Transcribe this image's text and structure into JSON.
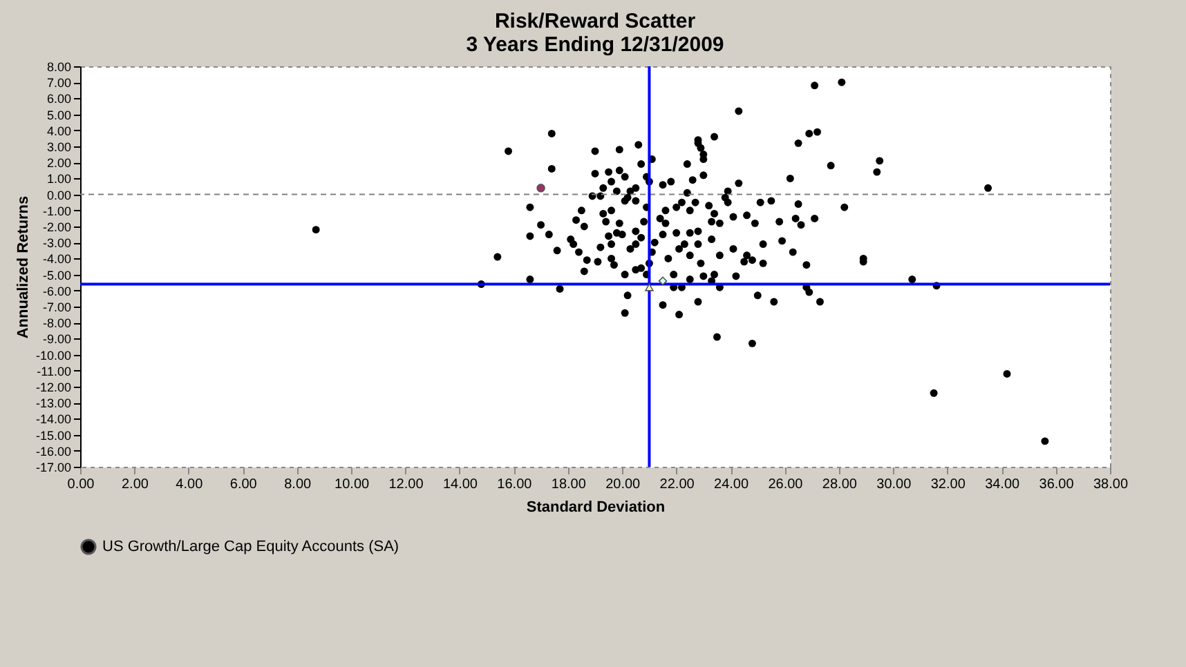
{
  "chart_data": {
    "type": "scatter",
    "title": "Risk/Reward Scatter",
    "subtitle": "3 Years Ending 12/31/2009",
    "xlabel": "Standard Deviation",
    "ylabel": "Annualized Returns",
    "xlim": [
      0,
      38
    ],
    "ylim": [
      -17,
      8
    ],
    "xticks": [
      {
        "value": 0,
        "label": "0.00"
      },
      {
        "value": 2,
        "label": "2.00"
      },
      {
        "value": 4,
        "label": "4.00"
      },
      {
        "value": 6,
        "label": "6.00"
      },
      {
        "value": 8,
        "label": "8.00"
      },
      {
        "value": 10,
        "label": "10.00"
      },
      {
        "value": 12,
        "label": "12.00"
      },
      {
        "value": 14,
        "label": "14.00"
      },
      {
        "value": 16,
        "label": "16.00"
      },
      {
        "value": 18,
        "label": "18.00"
      },
      {
        "value": 20,
        "label": "20.00"
      },
      {
        "value": 22,
        "label": "22.00"
      },
      {
        "value": 24,
        "label": "24.00"
      },
      {
        "value": 26,
        "label": "26.00"
      },
      {
        "value": 28,
        "label": "28.00"
      },
      {
        "value": 30,
        "label": "30.00"
      },
      {
        "value": 32,
        "label": "32.00"
      },
      {
        "value": 34,
        "label": "34.00"
      },
      {
        "value": 36,
        "label": "36.00"
      },
      {
        "value": 38,
        "label": "38.00"
      }
    ],
    "yticks": [
      {
        "value": 8,
        "label": "8.00"
      },
      {
        "value": 7,
        "label": "7.00"
      },
      {
        "value": 6,
        "label": "6.00"
      },
      {
        "value": 5,
        "label": "5.00"
      },
      {
        "value": 4,
        "label": "4.00"
      },
      {
        "value": 3,
        "label": "3.00"
      },
      {
        "value": 2,
        "label": "2.00"
      },
      {
        "value": 1,
        "label": "1.00"
      },
      {
        "value": 0,
        "label": "0.00"
      },
      {
        "value": -1,
        "label": "-1.00"
      },
      {
        "value": -2,
        "label": "-2.00"
      },
      {
        "value": -3,
        "label": "-3.00"
      },
      {
        "value": -4,
        "label": "-4.00"
      },
      {
        "value": -5,
        "label": "-5.00"
      },
      {
        "value": -6,
        "label": "-6.00"
      },
      {
        "value": -7,
        "label": "-7.00"
      },
      {
        "value": -8,
        "label": "-8.00"
      },
      {
        "value": -9,
        "label": "-9.00"
      },
      {
        "value": -10,
        "label": "-10.00"
      },
      {
        "value": -11,
        "label": "-11.00"
      },
      {
        "value": -12,
        "label": "-12.00"
      },
      {
        "value": -13,
        "label": "-13.00"
      },
      {
        "value": -14,
        "label": "-14.00"
      },
      {
        "value": -15,
        "label": "-15.00"
      },
      {
        "value": -16,
        "label": "-16.00"
      },
      {
        "value": -17,
        "label": "-17.00"
      }
    ],
    "legend": "bottom",
    "grid": false,
    "ref_lines": [
      {
        "axis": "y",
        "value": 0,
        "color": "#808080",
        "line_style": "dashed"
      },
      {
        "axis": "x",
        "value": 21.0,
        "color": "#0000ff",
        "line_style": "solid"
      },
      {
        "axis": "y",
        "value": -5.6,
        "color": "#0000ff",
        "line_style": "solid"
      }
    ],
    "series": [
      {
        "name": "US Growth/Large Cap Equity Accounts (SA)",
        "color": "#000000",
        "marker": "circle",
        "x": [
          8.7,
          14.8,
          27.1,
          28.1,
          24.3,
          17.4,
          15.8,
          19.0,
          19.9,
          20.6,
          22.8,
          22.8,
          22.9,
          23.0,
          23.0,
          23.4,
          26.9,
          27.2,
          26.5,
          17.4,
          21.1,
          22.4,
          23.0,
          22.6,
          21.8,
          21.5,
          21.0,
          27.7,
          29.5,
          29.4,
          26.2,
          33.5,
          28.2,
          16.6,
          17.0,
          16.6,
          17.3,
          17.6,
          15.4,
          16.6,
          17.7,
          18.3,
          18.5,
          18.6,
          18.1,
          18.2,
          18.4,
          18.7,
          19.1,
          18.6,
          19.2,
          19.6,
          19.5,
          19.8,
          20.0,
          19.4,
          19.3,
          19.6,
          19.9,
          20.2,
          18.9,
          19.2,
          19.3,
          19.0,
          19.5,
          19.6,
          19.9,
          20.1,
          19.8,
          20.3,
          20.5,
          20.7,
          20.9,
          20.1,
          20.5,
          20.9,
          20.8,
          20.5,
          20.7,
          20.5,
          20.3,
          19.6,
          19.7,
          20.1,
          20.5,
          20.7,
          21.0,
          20.9,
          21.1,
          21.2,
          21.5,
          21.6,
          21.4,
          21.6,
          22.0,
          22.2,
          22.4,
          22.5,
          22.7,
          23.2,
          23.4,
          23.9,
          23.8,
          24.3,
          23.9,
          25.1,
          25.5,
          26.5,
          23.3,
          23.6,
          24.1,
          24.6,
          24.9,
          25.8,
          26.4,
          26.6,
          27.1,
          22.0,
          22.5,
          22.8,
          22.3,
          22.8,
          23.3,
          22.1,
          21.7,
          22.5,
          22.9,
          23.6,
          24.1,
          24.6,
          24.5,
          24.8,
          25.2,
          25.2,
          25.9,
          26.3,
          26.8,
          28.9,
          28.9,
          21.9,
          22.5,
          23.0,
          23.3,
          23.4,
          24.2,
          21.9,
          22.2,
          23.6,
          26.8,
          26.9,
          30.7,
          31.6,
          20.2,
          20.1,
          21.5,
          22.1,
          22.8,
          25.0,
          25.6,
          27.3,
          23.5,
          24.8,
          31.5,
          34.2,
          35.6
        ],
        "values": [
          -2.2,
          -5.6,
          6.8,
          7.0,
          5.2,
          3.8,
          2.7,
          2.7,
          2.8,
          3.1,
          3.4,
          3.2,
          2.9,
          2.5,
          2.2,
          3.6,
          3.8,
          3.9,
          3.2,
          1.6,
          2.2,
          1.9,
          1.2,
          0.9,
          0.8,
          0.6,
          0.8,
          1.8,
          2.1,
          1.4,
          1.0,
          0.4,
          -0.8,
          -0.8,
          -1.9,
          -2.6,
          -2.5,
          -3.5,
          -3.9,
          -5.3,
          -5.9,
          -1.6,
          -1.0,
          -2.0,
          -2.8,
          -3.1,
          -3.6,
          -4.1,
          -4.2,
          -4.8,
          -3.3,
          -3.1,
          -2.6,
          -2.4,
          -2.5,
          -1.7,
          -1.2,
          -1.0,
          -1.8,
          -0.2,
          -0.1,
          -0.1,
          0.4,
          1.3,
          1.4,
          0.8,
          1.5,
          1.1,
          0.2,
          0.2,
          0.4,
          1.9,
          1.1,
          -0.4,
          -0.4,
          -0.8,
          -1.7,
          -2.3,
          -2.7,
          -3.1,
          -3.4,
          -4.0,
          -4.4,
          -5.0,
          -4.7,
          -4.6,
          -4.3,
          -5.0,
          -3.6,
          -3.0,
          -2.5,
          -1.8,
          -1.5,
          -1.0,
          -0.8,
          -0.5,
          0.1,
          -1.0,
          -0.5,
          -0.7,
          -1.2,
          0.2,
          -0.2,
          0.7,
          -0.5,
          -0.5,
          -0.4,
          -0.6,
          -1.7,
          -1.8,
          -1.4,
          -1.3,
          -1.8,
          -1.7,
          -1.5,
          -1.9,
          -1.5,
          -2.4,
          -2.4,
          -2.3,
          -3.1,
          -3.1,
          -2.8,
          -3.4,
          -4.0,
          -3.8,
          -4.3,
          -3.8,
          -3.4,
          -3.8,
          -4.2,
          -4.1,
          -4.3,
          -3.1,
          -2.9,
          -3.6,
          -4.4,
          -4.0,
          -4.2,
          -5.0,
          -5.3,
          -5.1,
          -5.4,
          -5.0,
          -5.1,
          -5.8,
          -5.8,
          -5.8,
          -5.8,
          -6.1,
          -5.3,
          -5.7,
          -6.3,
          -7.4,
          -6.9,
          -7.5,
          -6.7,
          -6.3,
          -6.7,
          -6.7,
          -8.9,
          -9.3,
          -12.4,
          -11.2,
          -15.4
        ]
      },
      {
        "color": "#993366",
        "marker": "circle",
        "x": [
          17.0
        ],
        "values": [
          0.4
        ]
      },
      {
        "color": "#ffffcc",
        "marker": "triangle",
        "x": [
          21.0
        ],
        "values": [
          -5.8
        ]
      },
      {
        "color": "#ccffff",
        "marker": "diamond",
        "x": [
          21.5
        ],
        "values": [
          -5.4
        ]
      }
    ]
  }
}
